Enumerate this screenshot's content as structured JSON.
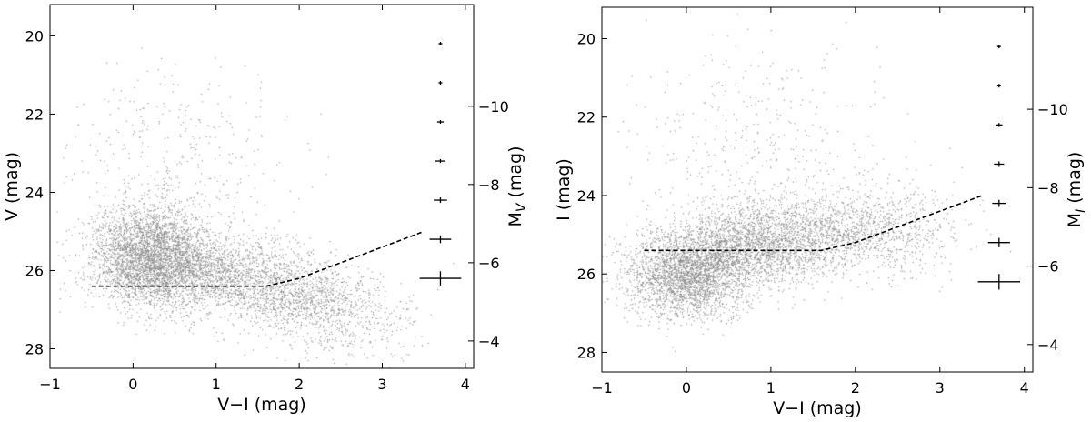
{
  "chart_data": [
    {
      "type": "scatter",
      "title": "",
      "xlabel": "V−I (mag)",
      "ylabel": "V (mag)",
      "y2label": {
        "main": "M",
        "sub": "V",
        "suffix": " (mag)"
      },
      "xlim": [
        -1,
        4.1
      ],
      "ylim": [
        28.5,
        19.2
      ],
      "y2lim": [
        -3.3,
        -12.6
      ],
      "xticks": [
        -1,
        0,
        1,
        2,
        3,
        4
      ],
      "yticks": [
        20,
        22,
        24,
        26,
        28
      ],
      "y2ticks": [
        -4,
        -6,
        -8,
        -10
      ],
      "x_tick_labels": [
        "−1",
        "0",
        "1",
        "2",
        "3",
        "4"
      ],
      "y_tick_labels": [
        "20",
        "22",
        "24",
        "26",
        "28"
      ],
      "y2_tick_labels": [
        "−4",
        "−6",
        "−8",
        "−10"
      ],
      "points_color": "#8a8a8a",
      "cloud": [
        {
          "x": 0.2,
          "y": 25.6,
          "sx": 0.35,
          "sy": 0.65,
          "n": 3200
        },
        {
          "x": 0.9,
          "y": 26.0,
          "sx": 0.55,
          "sy": 0.45,
          "n": 1600
        },
        {
          "x": 1.9,
          "y": 26.6,
          "sx": 0.5,
          "sy": 0.45,
          "n": 1100
        },
        {
          "x": 2.5,
          "y": 27.3,
          "sx": 0.45,
          "sy": 0.5,
          "n": 450
        },
        {
          "x": 0.5,
          "y": 23.5,
          "sx": 0.7,
          "sy": 1.4,
          "n": 400
        }
      ],
      "completeness_line": {
        "color": "#000000",
        "points": [
          [
            -0.5,
            26.4
          ],
          [
            1.6,
            26.4
          ],
          [
            2.0,
            26.2
          ],
          [
            3.5,
            25.0
          ]
        ]
      },
      "error_bars": {
        "x": 3.7,
        "points": [
          {
            "y": 20.2,
            "xerr": 0.01,
            "yerr": 0.01
          },
          {
            "y": 21.2,
            "xerr": 0.02,
            "yerr": 0.02
          },
          {
            "y": 22.2,
            "xerr": 0.04,
            "yerr": 0.03
          },
          {
            "y": 23.2,
            "xerr": 0.06,
            "yerr": 0.05
          },
          {
            "y": 24.2,
            "xerr": 0.08,
            "yerr": 0.07
          },
          {
            "y": 25.2,
            "xerr": 0.13,
            "yerr": 0.1
          },
          {
            "y": 26.2,
            "xerr": 0.25,
            "yerr": 0.18
          }
        ]
      }
    },
    {
      "type": "scatter",
      "title": "",
      "xlabel": "V−I (mag)",
      "ylabel": "I (mag)",
      "y2label": {
        "main": "M",
        "sub": "I",
        "suffix": " (mag)"
      },
      "xlim": [
        -1,
        4.1
      ],
      "ylim": [
        28.5,
        19.2
      ],
      "y2lim": [
        -3.3,
        -12.6
      ],
      "xticks": [
        -1,
        0,
        1,
        2,
        3,
        4
      ],
      "yticks": [
        20,
        22,
        24,
        26,
        28
      ],
      "y2ticks": [
        -4,
        -6,
        -8,
        -10
      ],
      "x_tick_labels": [
        "−1",
        "0",
        "1",
        "2",
        "3",
        "4"
      ],
      "y_tick_labels": [
        "20",
        "22",
        "24",
        "26",
        "28"
      ],
      "y2_tick_labels": [
        "−4",
        "−6",
        "−8",
        "−10"
      ],
      "points_color": "#8a8a8a",
      "cloud": [
        {
          "x": 0.0,
          "y": 26.0,
          "sx": 0.35,
          "sy": 0.55,
          "n": 2600
        },
        {
          "x": 0.7,
          "y": 25.3,
          "sx": 0.45,
          "sy": 0.55,
          "n": 1800
        },
        {
          "x": 1.6,
          "y": 25.0,
          "sx": 0.55,
          "sy": 0.5,
          "n": 1200
        },
        {
          "x": 2.4,
          "y": 24.9,
          "sx": 0.45,
          "sy": 0.6,
          "n": 500
        },
        {
          "x": 0.8,
          "y": 23.0,
          "sx": 0.8,
          "sy": 1.4,
          "n": 450
        }
      ],
      "completeness_line": {
        "color": "#000000",
        "points": [
          [
            -0.5,
            25.4
          ],
          [
            1.6,
            25.4
          ],
          [
            2.0,
            25.2
          ],
          [
            3.5,
            24.0
          ]
        ]
      },
      "error_bars": {
        "x": 3.7,
        "points": [
          {
            "y": 20.2,
            "xerr": 0.01,
            "yerr": 0.02
          },
          {
            "y": 21.2,
            "xerr": 0.02,
            "yerr": 0.03
          },
          {
            "y": 22.2,
            "xerr": 0.04,
            "yerr": 0.05
          },
          {
            "y": 23.2,
            "xerr": 0.06,
            "yerr": 0.07
          },
          {
            "y": 24.2,
            "xerr": 0.08,
            "yerr": 0.09
          },
          {
            "y": 25.2,
            "xerr": 0.13,
            "yerr": 0.12
          },
          {
            "y": 26.2,
            "xerr": 0.25,
            "yerr": 0.2
          }
        ]
      }
    }
  ]
}
